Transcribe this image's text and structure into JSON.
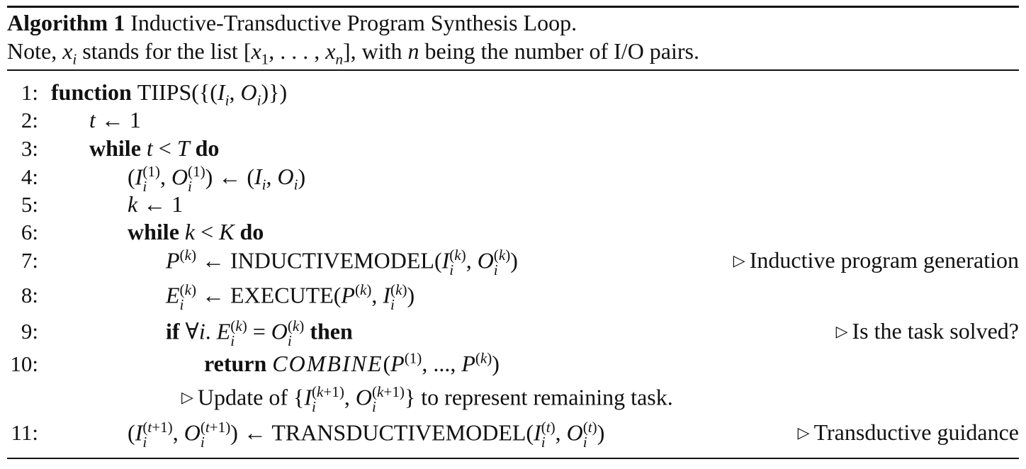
{
  "caption": {
    "label": "Algorithm 1",
    "title": "Inductive-Transductive Program Synthesis Loop.",
    "note_prefix": "Note,",
    "note_text": "stands for the list",
    "note_suffix": ", with",
    "note_end": "being the number of I/O pairs."
  },
  "lines": [
    {
      "no": "1:"
    },
    {
      "no": "2:"
    },
    {
      "no": "3:"
    },
    {
      "no": "4:"
    },
    {
      "no": "5:"
    },
    {
      "no": "6:"
    },
    {
      "no": "7:"
    },
    {
      "no": "8:"
    },
    {
      "no": "9:"
    },
    {
      "no": "10:"
    },
    {
      "no": "11:"
    }
  ],
  "keywords": {
    "function": "function",
    "while": "while",
    "do": "do",
    "if": "if",
    "then": "then",
    "return": "return"
  },
  "names": {
    "tiips": "TIIPS",
    "inductive_model": "INDUCTIVEMODEL",
    "execute": "EXECUTE",
    "combine": "COMBINE",
    "transductive_model": "TRANSDUCTIVEMODEL"
  },
  "comments": {
    "c7": "Inductive program generation",
    "c9": "Is the task solved?",
    "c10_prefix": "Update of",
    "c10_suffix": "to represent remaining task.",
    "c11": "Transductive guidance"
  }
}
